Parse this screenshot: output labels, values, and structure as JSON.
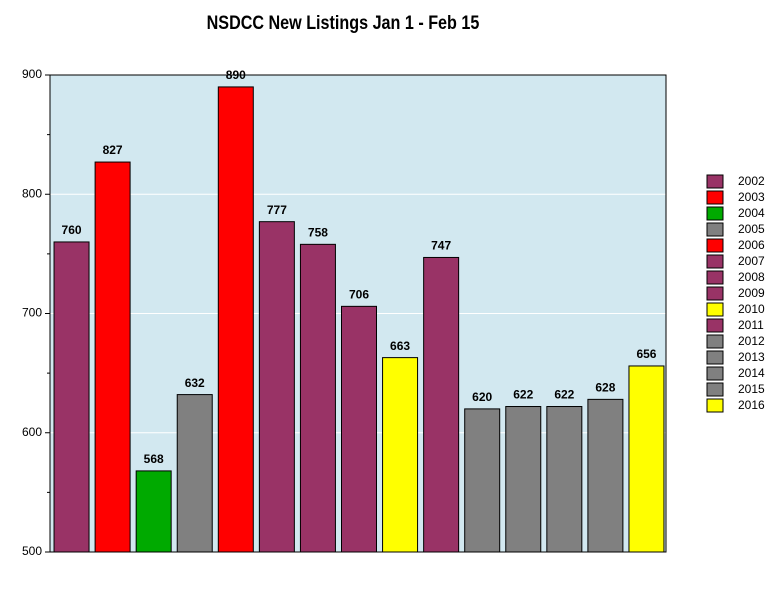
{
  "chart_data": {
    "type": "bar",
    "title": "NSDCC New Listings Jan 1 - Feb 15",
    "categories": [
      "2002",
      "2003",
      "2004",
      "2005",
      "2006",
      "2007",
      "2008",
      "2009",
      "2010",
      "2011",
      "2012",
      "2013",
      "2014",
      "2015",
      "2016"
    ],
    "values": [
      760,
      827,
      568,
      632,
      890,
      777,
      758,
      706,
      663,
      747,
      620,
      622,
      622,
      628,
      656
    ],
    "colors": [
      "#993366",
      "#ff0000",
      "#00aa00",
      "#808080",
      "#ff0000",
      "#993366",
      "#993366",
      "#993366",
      "#ffff00",
      "#993366",
      "#808080",
      "#808080",
      "#808080",
      "#808080",
      "#ffff00"
    ],
    "ylim": [
      500,
      900
    ],
    "yticks": [
      500,
      600,
      700,
      800,
      900
    ],
    "yminorticks": [
      550,
      650,
      750,
      850
    ],
    "grid": true,
    "legend": "right"
  }
}
